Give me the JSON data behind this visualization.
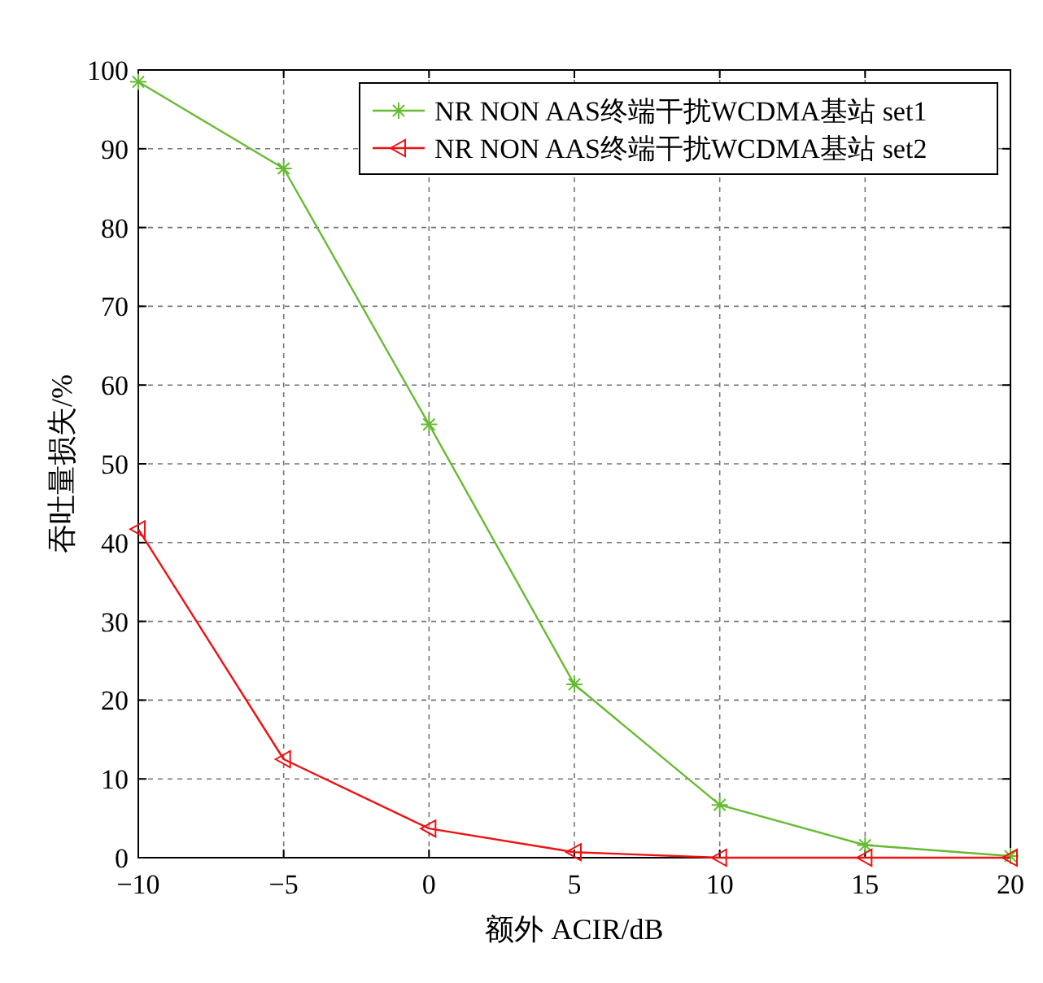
{
  "chart_data": {
    "type": "line",
    "xlabel": "额外 ACIR/dB",
    "ylabel": "吞吐量损失/%",
    "x": [
      -10,
      -5,
      0,
      5,
      10,
      15,
      20
    ],
    "series": [
      {
        "name": "NR NON AAS终端干扰WCDMA基站 set1",
        "color": "#66bb33",
        "marker": "cross",
        "values": [
          98.5,
          87.5,
          55,
          22,
          6.7,
          1.6,
          0.2
        ]
      },
      {
        "name": "NR NON AAS终端干扰WCDMA基站 set2",
        "color": "#ee1111",
        "marker": "triangle",
        "values": [
          41.7,
          12.5,
          3.7,
          0.7,
          0,
          0,
          0
        ]
      }
    ],
    "xlim": [
      -10,
      20
    ],
    "ylim": [
      0,
      100
    ],
    "xticks": [
      {
        "value": -10,
        "label": "−10"
      },
      {
        "value": -5,
        "label": "−5"
      },
      0,
      5,
      10,
      15,
      20
    ],
    "yticks": [
      0,
      10,
      20,
      30,
      40,
      50,
      60,
      70,
      80,
      90,
      100
    ],
    "grid": true,
    "legend": "top right",
    "line_style": "solid"
  }
}
